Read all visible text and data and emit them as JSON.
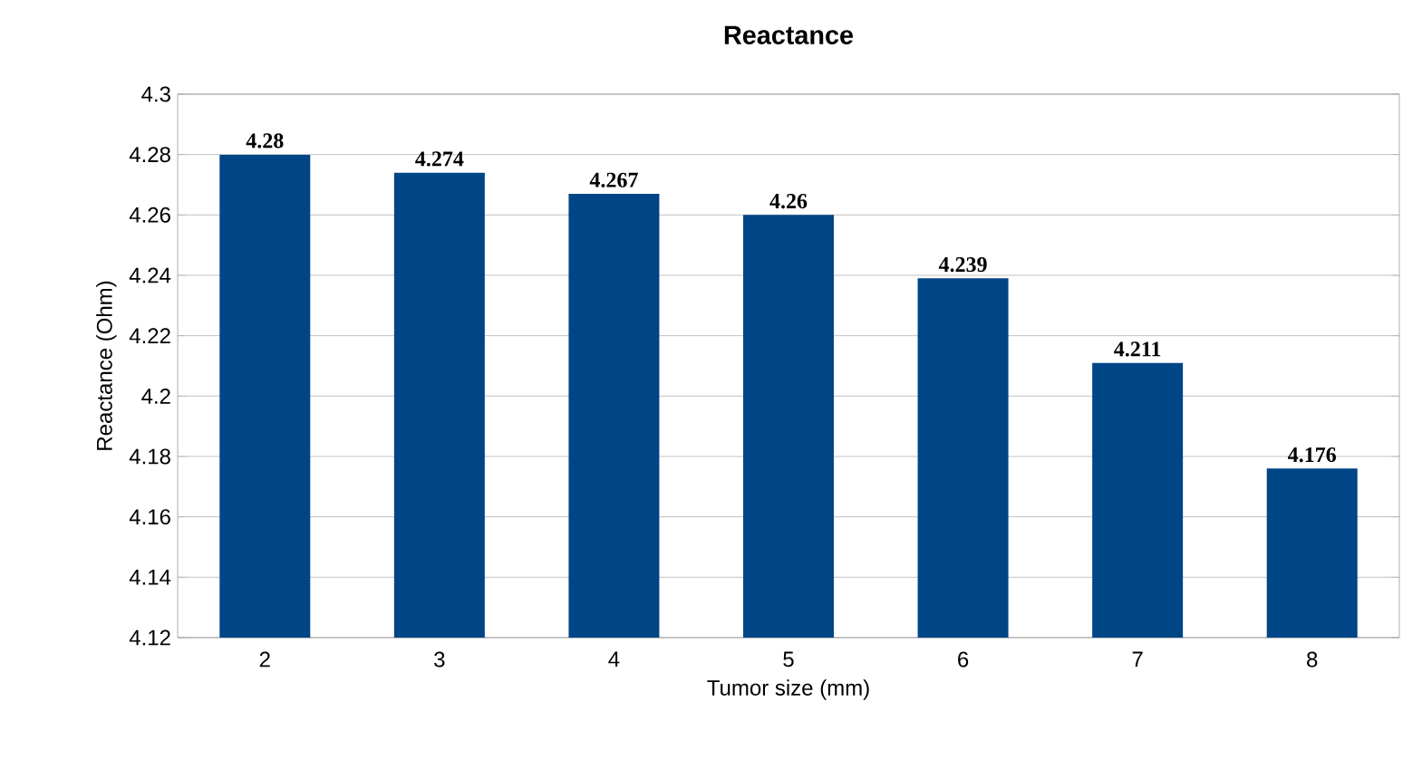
{
  "chart_data": {
    "type": "bar",
    "title": "Reactance",
    "xlabel": "Tumor size (mm)",
    "ylabel": "Reactance (Ohm)",
    "categories": [
      "2",
      "3",
      "4",
      "5",
      "6",
      "7",
      "8"
    ],
    "values": [
      4.28,
      4.274,
      4.267,
      4.26,
      4.239,
      4.211,
      4.176
    ],
    "color": "#004586",
    "ylim": [
      4.12,
      4.3
    ],
    "yticks": [
      4.12,
      4.14,
      4.16,
      4.18,
      4.2,
      4.22,
      4.24,
      4.26,
      4.28,
      4.3
    ],
    "grid": "y",
    "data_labels": true
  }
}
